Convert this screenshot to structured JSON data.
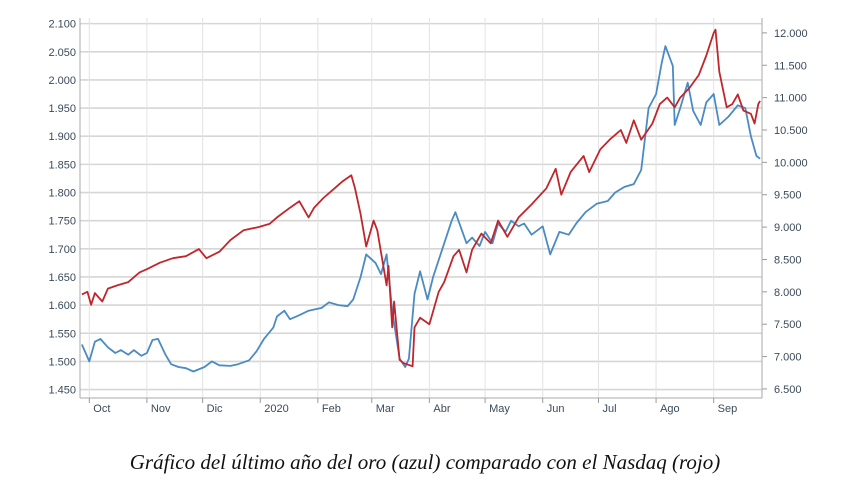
{
  "caption": "Gráfico del último año del oro (azul) comparado con el Nasdaq (rojo)",
  "chart_data": {
    "type": "line",
    "grid": true,
    "x_tick_labels": [
      "Oct",
      "Nov",
      "Dic",
      "2020",
      "Feb",
      "Mar",
      "Abr",
      "May",
      "Jun",
      "Jul",
      "Ago",
      "Sep"
    ],
    "y_left": {
      "ticks": [
        1450,
        1500,
        1550,
        1600,
        1650,
        1700,
        1750,
        1800,
        1850,
        1900,
        1950,
        2000,
        2050,
        2100
      ],
      "tick_labels": [
        "1.450",
        "1.500",
        "1.550",
        "1.600",
        "1.650",
        "1.700",
        "1.750",
        "1.800",
        "1.850",
        "1.900",
        "1.950",
        "2.000",
        "2.050",
        "2.100"
      ],
      "ylim": [
        1435,
        2110
      ]
    },
    "y_right": {
      "ticks": [
        6500,
        7000,
        7500,
        8000,
        8500,
        9000,
        9500,
        10000,
        10500,
        11000,
        11500,
        12000
      ],
      "tick_labels": [
        "6.500",
        "7.000",
        "7.500",
        "8.000",
        "8.500",
        "9.000",
        "9.500",
        "10.000",
        "10.500",
        "11.000",
        "11.500",
        "12.000"
      ],
      "ylim": [
        6360,
        12230
      ]
    },
    "series": [
      {
        "color": "#4a8bc4",
        "axis": "left",
        "points": [
          [
            "2019-09-27",
            1530
          ],
          [
            "2019-10-01",
            1500
          ],
          [
            "2019-10-04",
            1535
          ],
          [
            "2019-10-07",
            1540
          ],
          [
            "2019-10-11",
            1525
          ],
          [
            "2019-10-15",
            1515
          ],
          [
            "2019-10-18",
            1520
          ],
          [
            "2019-10-22",
            1512
          ],
          [
            "2019-10-25",
            1520
          ],
          [
            "2019-10-29",
            1510
          ],
          [
            "2019-11-01",
            1515
          ],
          [
            "2019-11-04",
            1538
          ],
          [
            "2019-11-07",
            1540
          ],
          [
            "2019-11-11",
            1512
          ],
          [
            "2019-11-14",
            1495
          ],
          [
            "2019-11-18",
            1490
          ],
          [
            "2019-11-22",
            1488
          ],
          [
            "2019-11-26",
            1482
          ],
          [
            "2019-12-02",
            1490
          ],
          [
            "2019-12-06",
            1500
          ],
          [
            "2019-12-10",
            1493
          ],
          [
            "2019-12-16",
            1492
          ],
          [
            "2019-12-20",
            1495
          ],
          [
            "2019-12-26",
            1502
          ],
          [
            "2019-12-30",
            1518
          ],
          [
            "2020-01-03",
            1540
          ],
          [
            "2020-01-08",
            1560
          ],
          [
            "2020-01-10",
            1580
          ],
          [
            "2020-01-14",
            1590
          ],
          [
            "2020-01-17",
            1575
          ],
          [
            "2020-01-22",
            1582
          ],
          [
            "2020-01-27",
            1590
          ],
          [
            "2020-02-03",
            1595
          ],
          [
            "2020-02-07",
            1605
          ],
          [
            "2020-02-12",
            1600
          ],
          [
            "2020-02-17",
            1598
          ],
          [
            "2020-02-20",
            1610
          ],
          [
            "2020-02-24",
            1650
          ],
          [
            "2020-02-27",
            1690
          ],
          [
            "2020-03-03",
            1675
          ],
          [
            "2020-03-06",
            1655
          ],
          [
            "2020-03-09",
            1690
          ],
          [
            "2020-03-12",
            1590
          ],
          [
            "2020-03-16",
            1505
          ],
          [
            "2020-03-19",
            1490
          ],
          [
            "2020-03-21",
            1505
          ],
          [
            "2020-03-24",
            1620
          ],
          [
            "2020-03-27",
            1660
          ],
          [
            "2020-03-31",
            1610
          ],
          [
            "2020-04-03",
            1650
          ],
          [
            "2020-04-08",
            1700
          ],
          [
            "2020-04-13",
            1750
          ],
          [
            "2020-04-15",
            1765
          ],
          [
            "2020-04-21",
            1710
          ],
          [
            "2020-04-24",
            1720
          ],
          [
            "2020-04-28",
            1705
          ],
          [
            "2020-05-01",
            1730
          ],
          [
            "2020-05-05",
            1710
          ],
          [
            "2020-05-08",
            1745
          ],
          [
            "2020-05-12",
            1730
          ],
          [
            "2020-05-15",
            1750
          ],
          [
            "2020-05-19",
            1740
          ],
          [
            "2020-05-22",
            1745
          ],
          [
            "2020-05-26",
            1725
          ],
          [
            "2020-06-01",
            1740
          ],
          [
            "2020-06-05",
            1690
          ],
          [
            "2020-06-10",
            1730
          ],
          [
            "2020-06-15",
            1725
          ],
          [
            "2020-06-19",
            1745
          ],
          [
            "2020-06-24",
            1765
          ],
          [
            "2020-06-30",
            1780
          ],
          [
            "2020-07-06",
            1785
          ],
          [
            "2020-07-10",
            1800
          ],
          [
            "2020-07-15",
            1810
          ],
          [
            "2020-07-20",
            1815
          ],
          [
            "2020-07-24",
            1840
          ],
          [
            "2020-07-28",
            1950
          ],
          [
            "2020-08-01",
            1975
          ],
          [
            "2020-08-04",
            2030
          ],
          [
            "2020-08-06",
            2060
          ],
          [
            "2020-08-10",
            2025
          ],
          [
            "2020-08-11",
            1920
          ],
          [
            "2020-08-14",
            1950
          ],
          [
            "2020-08-18",
            1995
          ],
          [
            "2020-08-21",
            1945
          ],
          [
            "2020-08-25",
            1920
          ],
          [
            "2020-08-28",
            1960
          ],
          [
            "2020-09-01",
            1975
          ],
          [
            "2020-09-04",
            1920
          ],
          [
            "2020-09-09",
            1935
          ],
          [
            "2020-09-14",
            1955
          ],
          [
            "2020-09-18",
            1950
          ],
          [
            "2020-09-21",
            1900
          ],
          [
            "2020-09-24",
            1865
          ],
          [
            "2020-09-26",
            1860
          ]
        ]
      },
      {
        "color": "#c0262c",
        "axis": "right",
        "points": [
          [
            "2019-09-27",
            7960
          ],
          [
            "2019-09-30",
            8000
          ],
          [
            "2019-10-02",
            7800
          ],
          [
            "2019-10-04",
            7980
          ],
          [
            "2019-10-08",
            7850
          ],
          [
            "2019-10-11",
            8050
          ],
          [
            "2019-10-16",
            8100
          ],
          [
            "2019-10-22",
            8150
          ],
          [
            "2019-10-28",
            8300
          ],
          [
            "2019-11-01",
            8350
          ],
          [
            "2019-11-08",
            8450
          ],
          [
            "2019-11-15",
            8520
          ],
          [
            "2019-11-22",
            8550
          ],
          [
            "2019-11-29",
            8660
          ],
          [
            "2019-12-03",
            8520
          ],
          [
            "2019-12-10",
            8620
          ],
          [
            "2019-12-16",
            8800
          ],
          [
            "2019-12-23",
            8950
          ],
          [
            "2019-12-31",
            9000
          ],
          [
            "2020-01-06",
            9050
          ],
          [
            "2020-01-10",
            9150
          ],
          [
            "2020-01-17",
            9300
          ],
          [
            "2020-01-22",
            9400
          ],
          [
            "2020-01-27",
            9150
          ],
          [
            "2020-01-30",
            9300
          ],
          [
            "2020-02-04",
            9450
          ],
          [
            "2020-02-10",
            9600
          ],
          [
            "2020-02-14",
            9700
          ],
          [
            "2020-02-19",
            9800
          ],
          [
            "2020-02-21",
            9600
          ],
          [
            "2020-02-24",
            9200
          ],
          [
            "2020-02-27",
            8700
          ],
          [
            "2020-03-02",
            9100
          ],
          [
            "2020-03-04",
            8950
          ],
          [
            "2020-03-09",
            8100
          ],
          [
            "2020-03-10",
            8400
          ],
          [
            "2020-03-12",
            7450
          ],
          [
            "2020-03-13",
            7850
          ],
          [
            "2020-03-16",
            6950
          ],
          [
            "2020-03-18",
            6900
          ],
          [
            "2020-03-20",
            6880
          ],
          [
            "2020-03-23",
            6850
          ],
          [
            "2020-03-24",
            7450
          ],
          [
            "2020-03-27",
            7600
          ],
          [
            "2020-04-01",
            7500
          ],
          [
            "2020-04-06",
            8000
          ],
          [
            "2020-04-09",
            8150
          ],
          [
            "2020-04-14",
            8550
          ],
          [
            "2020-04-17",
            8650
          ],
          [
            "2020-04-21",
            8300
          ],
          [
            "2020-04-24",
            8650
          ],
          [
            "2020-04-29",
            8900
          ],
          [
            "2020-05-04",
            8750
          ],
          [
            "2020-05-08",
            9100
          ],
          [
            "2020-05-13",
            8850
          ],
          [
            "2020-05-19",
            9150
          ],
          [
            "2020-05-26",
            9350
          ],
          [
            "2020-06-03",
            9600
          ],
          [
            "2020-06-08",
            9900
          ],
          [
            "2020-06-11",
            9500
          ],
          [
            "2020-06-16",
            9850
          ],
          [
            "2020-06-23",
            10100
          ],
          [
            "2020-06-26",
            9850
          ],
          [
            "2020-07-02",
            10200
          ],
          [
            "2020-07-07",
            10350
          ],
          [
            "2020-07-13",
            10500
          ],
          [
            "2020-07-16",
            10300
          ],
          [
            "2020-07-20",
            10650
          ],
          [
            "2020-07-24",
            10350
          ],
          [
            "2020-07-30",
            10600
          ],
          [
            "2020-08-03",
            10900
          ],
          [
            "2020-08-07",
            11000
          ],
          [
            "2020-08-11",
            10850
          ],
          [
            "2020-08-14",
            11000
          ],
          [
            "2020-08-19",
            11150
          ],
          [
            "2020-08-24",
            11350
          ],
          [
            "2020-08-28",
            11650
          ],
          [
            "2020-09-01",
            12000
          ],
          [
            "2020-09-02",
            12050
          ],
          [
            "2020-09-04",
            11400
          ],
          [
            "2020-09-08",
            10850
          ],
          [
            "2020-09-11",
            10900
          ],
          [
            "2020-09-14",
            11050
          ],
          [
            "2020-09-17",
            10800
          ],
          [
            "2020-09-21",
            10750
          ],
          [
            "2020-09-23",
            10600
          ],
          [
            "2020-09-25",
            10900
          ],
          [
            "2020-09-26",
            10950
          ]
        ]
      }
    ]
  }
}
